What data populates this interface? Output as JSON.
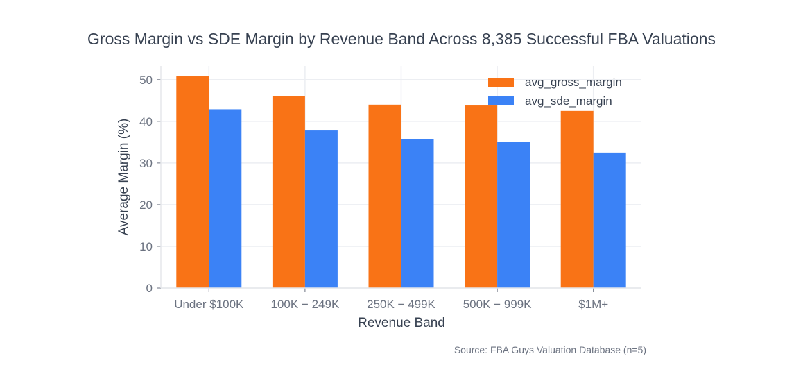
{
  "chart_data": {
    "type": "bar",
    "title": "Gross Margin vs SDE Margin by Revenue Band Across 8,385 Successful FBA Valuations",
    "xlabel": "Revenue Band",
    "ylabel": "Average Margin (%)",
    "ylim": [
      0,
      53.3
    ],
    "yticks": [
      0,
      10,
      20,
      30,
      40,
      50
    ],
    "grid": true,
    "legend_placement": "top-right",
    "categories": [
      "Under $100K",
      "100K − 249K",
      "250K − 499K",
      "500K − 999K",
      "$1M+"
    ],
    "series": [
      {
        "name": "avg_gross_margin",
        "color": "#f97316",
        "values": [
          50.8,
          46.0,
          44.0,
          43.8,
          42.5
        ]
      },
      {
        "name": "avg_sde_margin",
        "color": "#3b82f6",
        "values": [
          42.9,
          37.8,
          35.7,
          35.0,
          32.5
        ]
      }
    ],
    "annotation": "Source: FBA Guys Valuation Database (n=5)"
  }
}
